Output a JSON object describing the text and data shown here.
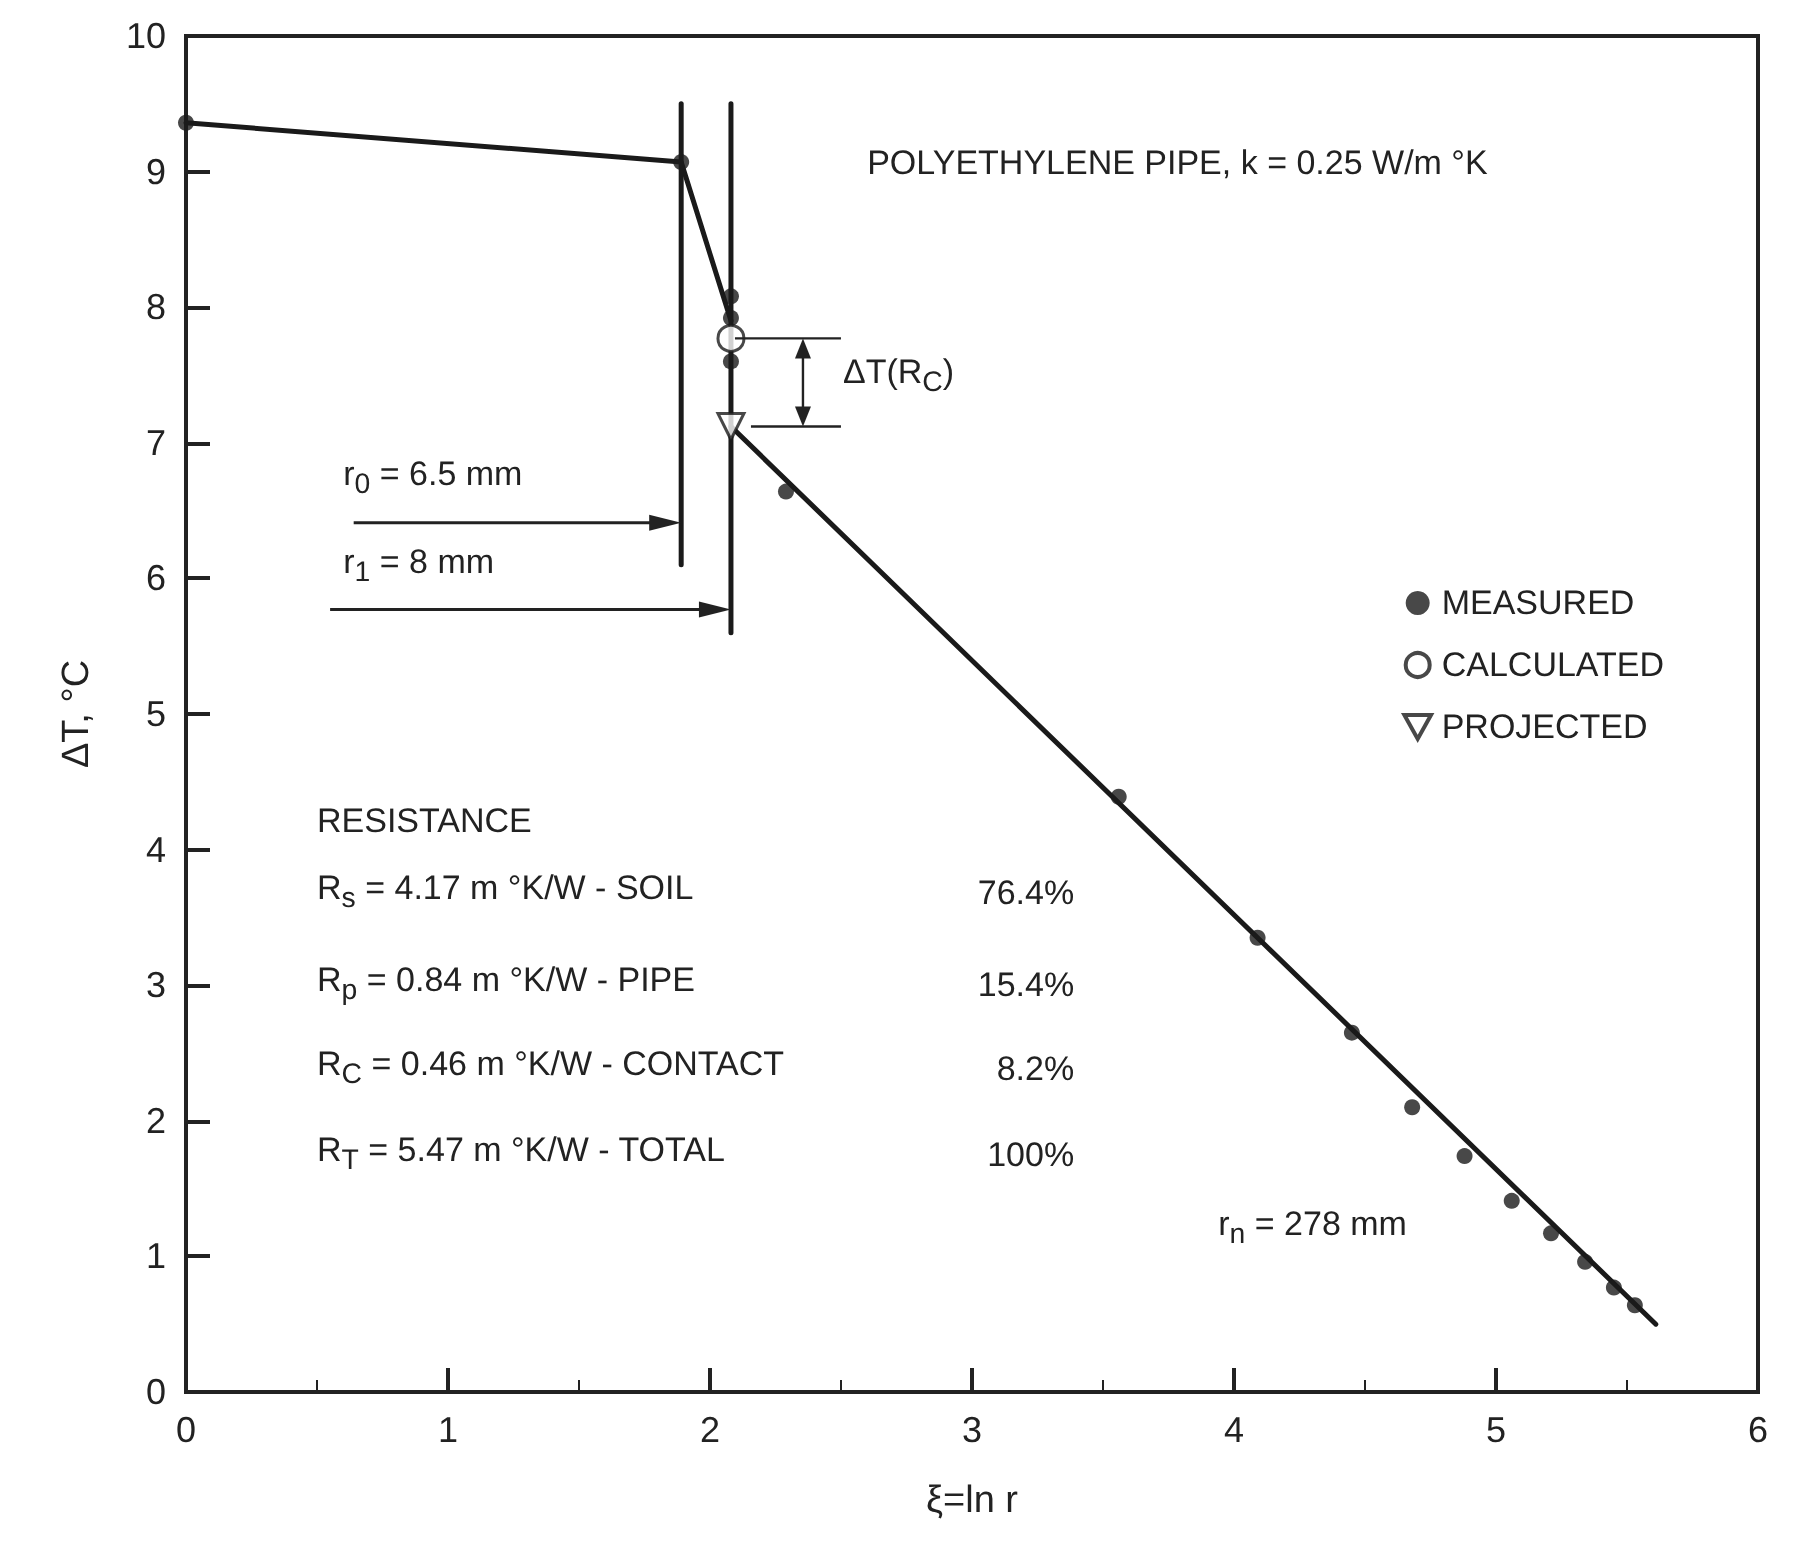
{
  "chart_data": {
    "type": "line",
    "xlabel": "ξ=ln r",
    "ylabel": "ΔT, °C",
    "xlim": [
      0,
      6
    ],
    "xticks": [
      0,
      1,
      2,
      3,
      4,
      5,
      6
    ],
    "ylim": [
      0,
      10
    ],
    "yticks": [
      0,
      1,
      2,
      3,
      4,
      5,
      6,
      7,
      8,
      9,
      10
    ],
    "grid": false,
    "legend": "right",
    "series": [
      {
        "marker": "none",
        "color": "#1a1a1a",
        "x": [
          0,
          1.89,
          2.08
        ],
        "values": [
          9.36,
          9.07,
          7.9
        ]
      },
      {
        "marker": "none",
        "color": "#1a1a1a",
        "x": [
          2.08,
          5.61
        ],
        "values": [
          7.12,
          0.5
        ]
      },
      {
        "marker": "none",
        "color": "#1a1a1a",
        "x": [
          1.89,
          1.89
        ],
        "values": [
          6.1,
          9.5
        ]
      },
      {
        "marker": "none",
        "color": "#1a1a1a",
        "x": [
          2.08,
          2.08
        ],
        "values": [
          5.6,
          9.5
        ]
      },
      {
        "type": "scatter",
        "name": "MEASURED",
        "marker": "circle",
        "color": "#1a1a1a",
        "x": [
          0,
          1.89,
          2.08,
          2.08,
          2.08,
          2.29,
          3.56,
          4.09,
          4.45,
          4.68,
          4.88,
          5.06,
          5.21,
          5.34,
          5.45,
          5.53
        ],
        "values": [
          9.36,
          9.07,
          8.08,
          7.92,
          7.6,
          6.64,
          4.39,
          3.35,
          2.65,
          2.1,
          1.74,
          1.41,
          1.17,
          0.96,
          0.77,
          0.64
        ]
      },
      {
        "type": "scatter",
        "name": "CALCULATED",
        "marker": "circle",
        "color": "#ffffff",
        "x": [
          2.08
        ],
        "values": [
          7.77
        ]
      },
      {
        "type": "scatter",
        "name": "PROJECTED",
        "marker": "triangle",
        "color": "#ffffff",
        "x": [
          2.08
        ],
        "values": [
          7.12
        ]
      }
    ],
    "annotations": [
      "POLYETHYLENE PIPE, k = 0.25 W/m °K",
      {
        "text": "ΔT(R$_{C}$)",
        "x": 2.08,
        "y": 7.77
      },
      "RESISTANCE",
      "R$_{s}$ = 4.17 m °K/W - SOIL",
      "76.4%",
      "R$_{p}$ = 0.84 m °K/W - PIPE",
      "15.4%",
      "R$_{C}$ = 0.46 m °K/W - CONTACT",
      "8.2%",
      "R$_{T}$ = 5.47 m °K/W - TOTAL",
      "100%",
      "r$_{n}$ = 278 mm",
      "r$_{0}$ = 6.5 mm",
      "r$_{1}$ = 8 mm"
    ]
  }
}
